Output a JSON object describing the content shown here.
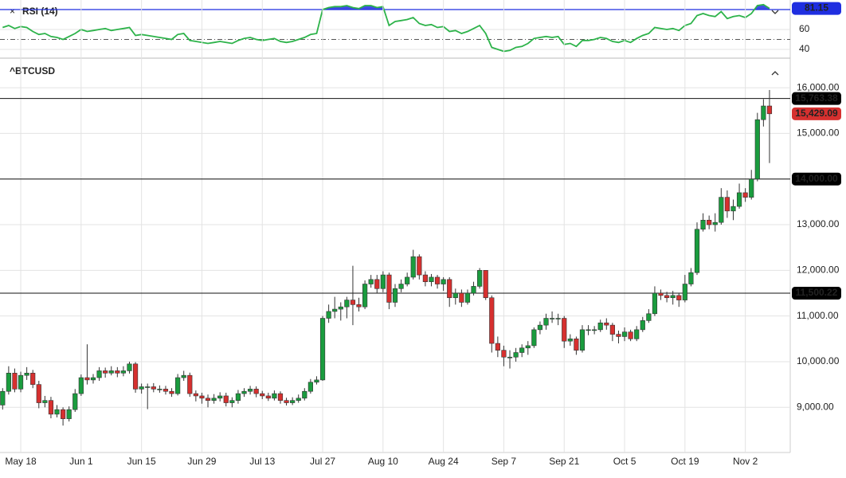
{
  "chart_data": [
    {
      "type": "line",
      "title": "RSI (14)",
      "color": "#2db34a",
      "overbought_color": "#1f2ee0",
      "ylim": [
        32,
        88
      ],
      "yticks": [
        40,
        60
      ],
      "levels": [
        80,
        50
      ],
      "grid": true,
      "values": [
        62,
        64,
        61,
        63,
        62,
        58,
        55,
        56,
        53,
        52,
        50,
        53,
        56,
        60,
        58,
        59,
        60,
        61,
        59,
        60,
        61,
        62,
        54,
        55,
        54,
        53,
        52,
        51,
        50,
        55,
        56,
        49,
        48,
        47,
        46,
        47,
        48,
        47,
        46,
        49,
        51,
        52,
        50,
        49,
        50,
        51,
        48,
        47,
        48,
        50,
        52,
        55,
        56,
        80,
        82,
        83,
        83,
        84,
        82,
        81,
        84,
        84,
        82,
        83,
        64,
        68,
        69,
        70,
        72,
        66,
        64,
        65,
        62,
        63,
        58,
        59,
        56,
        58,
        61,
        64,
        56,
        42,
        40,
        38,
        39,
        42,
        43,
        46,
        51,
        52,
        53,
        52,
        53,
        45,
        46,
        43,
        49,
        49,
        50,
        52,
        51,
        48,
        47,
        49,
        47,
        51,
        54,
        56,
        62,
        61,
        60,
        61,
        59,
        64,
        66,
        74,
        76,
        74,
        73,
        78,
        71,
        73,
        74,
        72,
        76,
        84,
        85,
        81.15
      ]
    },
    {
      "type": "candlestick",
      "title": "^BTCUSD",
      "up_color": "#1a9c3e",
      "down_color": "#d6302f",
      "ylim": [
        8000,
        16560
      ],
      "yticks": [
        {
          "value": 9000,
          "label": "9,000.00"
        },
        {
          "value": 10000,
          "label": "10,000.00"
        },
        {
          "value": 11000,
          "label": "11,000.00"
        },
        {
          "value": 12000,
          "label": "12,000.00"
        },
        {
          "value": 13000,
          "label": "13,000.00"
        },
        {
          "value": 14000,
          "label": "14,000.00"
        },
        {
          "value": 15000,
          "label": "15,000.00"
        },
        {
          "value": 16000,
          "label": "16,000.00"
        }
      ],
      "grid": true,
      "price_lines": [
        {
          "value": 15763.38,
          "label": "15,763.38"
        },
        {
          "value": 14000,
          "label": "14,000.00"
        },
        {
          "value": 11500.22,
          "label": "11,500.22"
        }
      ],
      "last_close_label": "15,429.09",
      "categories": [
        null,
        null,
        null,
        "May 18",
        null,
        null,
        null,
        null,
        null,
        null,
        null,
        null,
        null,
        "Jun 1",
        null,
        null,
        null,
        null,
        null,
        null,
        null,
        null,
        null,
        "Jun 15",
        null,
        null,
        null,
        null,
        null,
        null,
        null,
        null,
        null,
        "Jun 29",
        null,
        null,
        null,
        null,
        null,
        null,
        null,
        null,
        null,
        "Jul 13",
        null,
        null,
        null,
        null,
        null,
        null,
        null,
        null,
        null,
        "Jul 27",
        null,
        null,
        null,
        null,
        null,
        null,
        null,
        null,
        null,
        "Aug 10",
        null,
        null,
        null,
        null,
        null,
        null,
        null,
        null,
        null,
        "Aug 24",
        null,
        null,
        null,
        null,
        null,
        null,
        null,
        null,
        null,
        "Sep 7",
        null,
        null,
        null,
        null,
        null,
        null,
        null,
        null,
        null,
        "Sep 21",
        null,
        null,
        null,
        null,
        null,
        null,
        null,
        null,
        null,
        "Oct 5",
        null,
        null,
        null,
        null,
        null,
        null,
        null,
        null,
        null,
        "Oct 19",
        null,
        null,
        null,
        null,
        null,
        null,
        null,
        null,
        null,
        "Nov 2",
        null,
        null,
        null,
        null
      ],
      "open": [
        9050,
        9350,
        9750,
        9400,
        9700,
        9750,
        9500,
        9100,
        9150,
        8850,
        8950,
        8750,
        8950,
        9300,
        9650,
        9600,
        9650,
        9800,
        9750,
        9800,
        9750,
        9800,
        9950,
        9400,
        9450,
        9450,
        9400,
        9400,
        9350,
        9300,
        9650,
        9700,
        9300,
        9250,
        9200,
        9150,
        9200,
        9250,
        9100,
        9150,
        9300,
        9350,
        9400,
        9300,
        9250,
        9200,
        9300,
        9150,
        9100,
        9150,
        9200,
        9350,
        9550,
        9600,
        10950,
        11100,
        11150,
        11200,
        11350,
        11250,
        11200,
        11700,
        11800,
        11600,
        11900,
        11300,
        11600,
        11700,
        11850,
        12300,
        11900,
        11750,
        11850,
        11700,
        11800,
        11400,
        11500,
        11300,
        11500,
        11650,
        12000,
        11400,
        10400,
        10250,
        10100,
        10100,
        10200,
        10300,
        10350,
        10700,
        10800,
        10950,
        10950,
        10950,
        10450,
        10500,
        10250,
        10700,
        10700,
        10700,
        10850,
        10800,
        10600,
        10550,
        10650,
        10500,
        10700,
        10900,
        11050,
        11500,
        11450,
        11400,
        11450,
        11350,
        11700,
        11950,
        12900,
        13100,
        13000,
        13050,
        13600,
        13300,
        13400,
        13700,
        13600,
        14000,
        15300,
        15600
      ],
      "high": [
        9420,
        9900,
        9850,
        9780,
        9880,
        9820,
        9580,
        9250,
        9230,
        9050,
        9000,
        9020,
        9400,
        9720,
        10380,
        9730,
        9880,
        9870,
        9900,
        9880,
        9900,
        10000,
        9990,
        9520,
        9520,
        9530,
        9480,
        9470,
        9420,
        9730,
        9800,
        9760,
        9370,
        9320,
        9280,
        9290,
        9330,
        9320,
        9220,
        9380,
        9420,
        9470,
        9460,
        9360,
        9320,
        9370,
        9350,
        9210,
        9220,
        9280,
        9420,
        9620,
        9680,
        11000,
        11250,
        11420,
        11300,
        11420,
        12100,
        11400,
        11780,
        11900,
        11900,
        11980,
        11950,
        11700,
        11800,
        11950,
        12450,
        12350,
        11980,
        11920,
        11900,
        11850,
        11850,
        11600,
        11580,
        11580,
        11750,
        12050,
        12000,
        11450,
        10550,
        10350,
        10250,
        10300,
        10380,
        10450,
        10750,
        10880,
        11050,
        11100,
        11050,
        11000,
        10600,
        10550,
        10800,
        10800,
        10780,
        10920,
        10950,
        10850,
        10680,
        10750,
        10700,
        10780,
        10980,
        11150,
        11650,
        11580,
        11530,
        11550,
        11500,
        11900,
        12050,
        13050,
        13250,
        13200,
        13250,
        13800,
        13750,
        13550,
        13900,
        13800,
        14200,
        15450,
        15750,
        15950
      ],
      "low": [
        8950,
        9280,
        9330,
        9330,
        9600,
        9420,
        8980,
        9000,
        8760,
        8780,
        8600,
        8690,
        8900,
        9250,
        9500,
        9520,
        9580,
        9650,
        9700,
        9660,
        9680,
        9740,
        9320,
        9300,
        8960,
        9330,
        9320,
        9280,
        9230,
        9260,
        9580,
        9230,
        9130,
        9080,
        9000,
        9080,
        9130,
        9020,
        9000,
        9080,
        9230,
        9280,
        9220,
        9180,
        9140,
        9150,
        9080,
        9040,
        9050,
        9100,
        9150,
        9300,
        9500,
        9580,
        10850,
        10950,
        10900,
        10950,
        10800,
        11100,
        11150,
        11620,
        11500,
        11520,
        11150,
        11200,
        11520,
        11650,
        11800,
        11800,
        11650,
        11650,
        11600,
        11550,
        11200,
        11250,
        11200,
        11250,
        11450,
        11600,
        11350,
        10200,
        10100,
        9900,
        9850,
        10000,
        10100,
        10150,
        10300,
        10600,
        10700,
        10850,
        10800,
        10300,
        10350,
        10150,
        10200,
        10580,
        10600,
        10650,
        10700,
        10450,
        10400,
        10450,
        10450,
        10450,
        10650,
        10850,
        11000,
        11350,
        11300,
        11250,
        11200,
        11300,
        11650,
        11900,
        12850,
        12900,
        12850,
        13000,
        13150,
        13100,
        13350,
        13500,
        13550,
        13950,
        15150,
        14350
      ],
      "close": [
        9350,
        9750,
        9400,
        9700,
        9750,
        9500,
        9100,
        9150,
        8850,
        8950,
        8750,
        8950,
        9300,
        9650,
        9600,
        9650,
        9800,
        9750,
        9800,
        9750,
        9800,
        9950,
        9400,
        9450,
        9450,
        9400,
        9400,
        9350,
        9300,
        9650,
        9700,
        9300,
        9250,
        9200,
        9150,
        9200,
        9250,
        9100,
        9150,
        9300,
        9350,
        9400,
        9300,
        9250,
        9200,
        9300,
        9150,
        9100,
        9150,
        9200,
        9350,
        9550,
        9600,
        10950,
        11100,
        11150,
        11200,
        11350,
        11250,
        11200,
        11700,
        11800,
        11600,
        11900,
        11300,
        11600,
        11700,
        11850,
        12300,
        11900,
        11750,
        11850,
        11700,
        11800,
        11400,
        11500,
        11300,
        11500,
        11650,
        12000,
        11400,
        10400,
        10250,
        10100,
        10100,
        10200,
        10300,
        10350,
        10700,
        10800,
        10950,
        10950,
        10950,
        10450,
        10500,
        10250,
        10700,
        10700,
        10700,
        10850,
        10800,
        10600,
        10550,
        10650,
        10500,
        10700,
        10900,
        11050,
        11500,
        11450,
        11400,
        11450,
        11350,
        11700,
        11950,
        12900,
        13100,
        13000,
        13050,
        13600,
        13300,
        13400,
        13700,
        13600,
        14000,
        15300,
        15600,
        15429.09
      ]
    }
  ]
}
